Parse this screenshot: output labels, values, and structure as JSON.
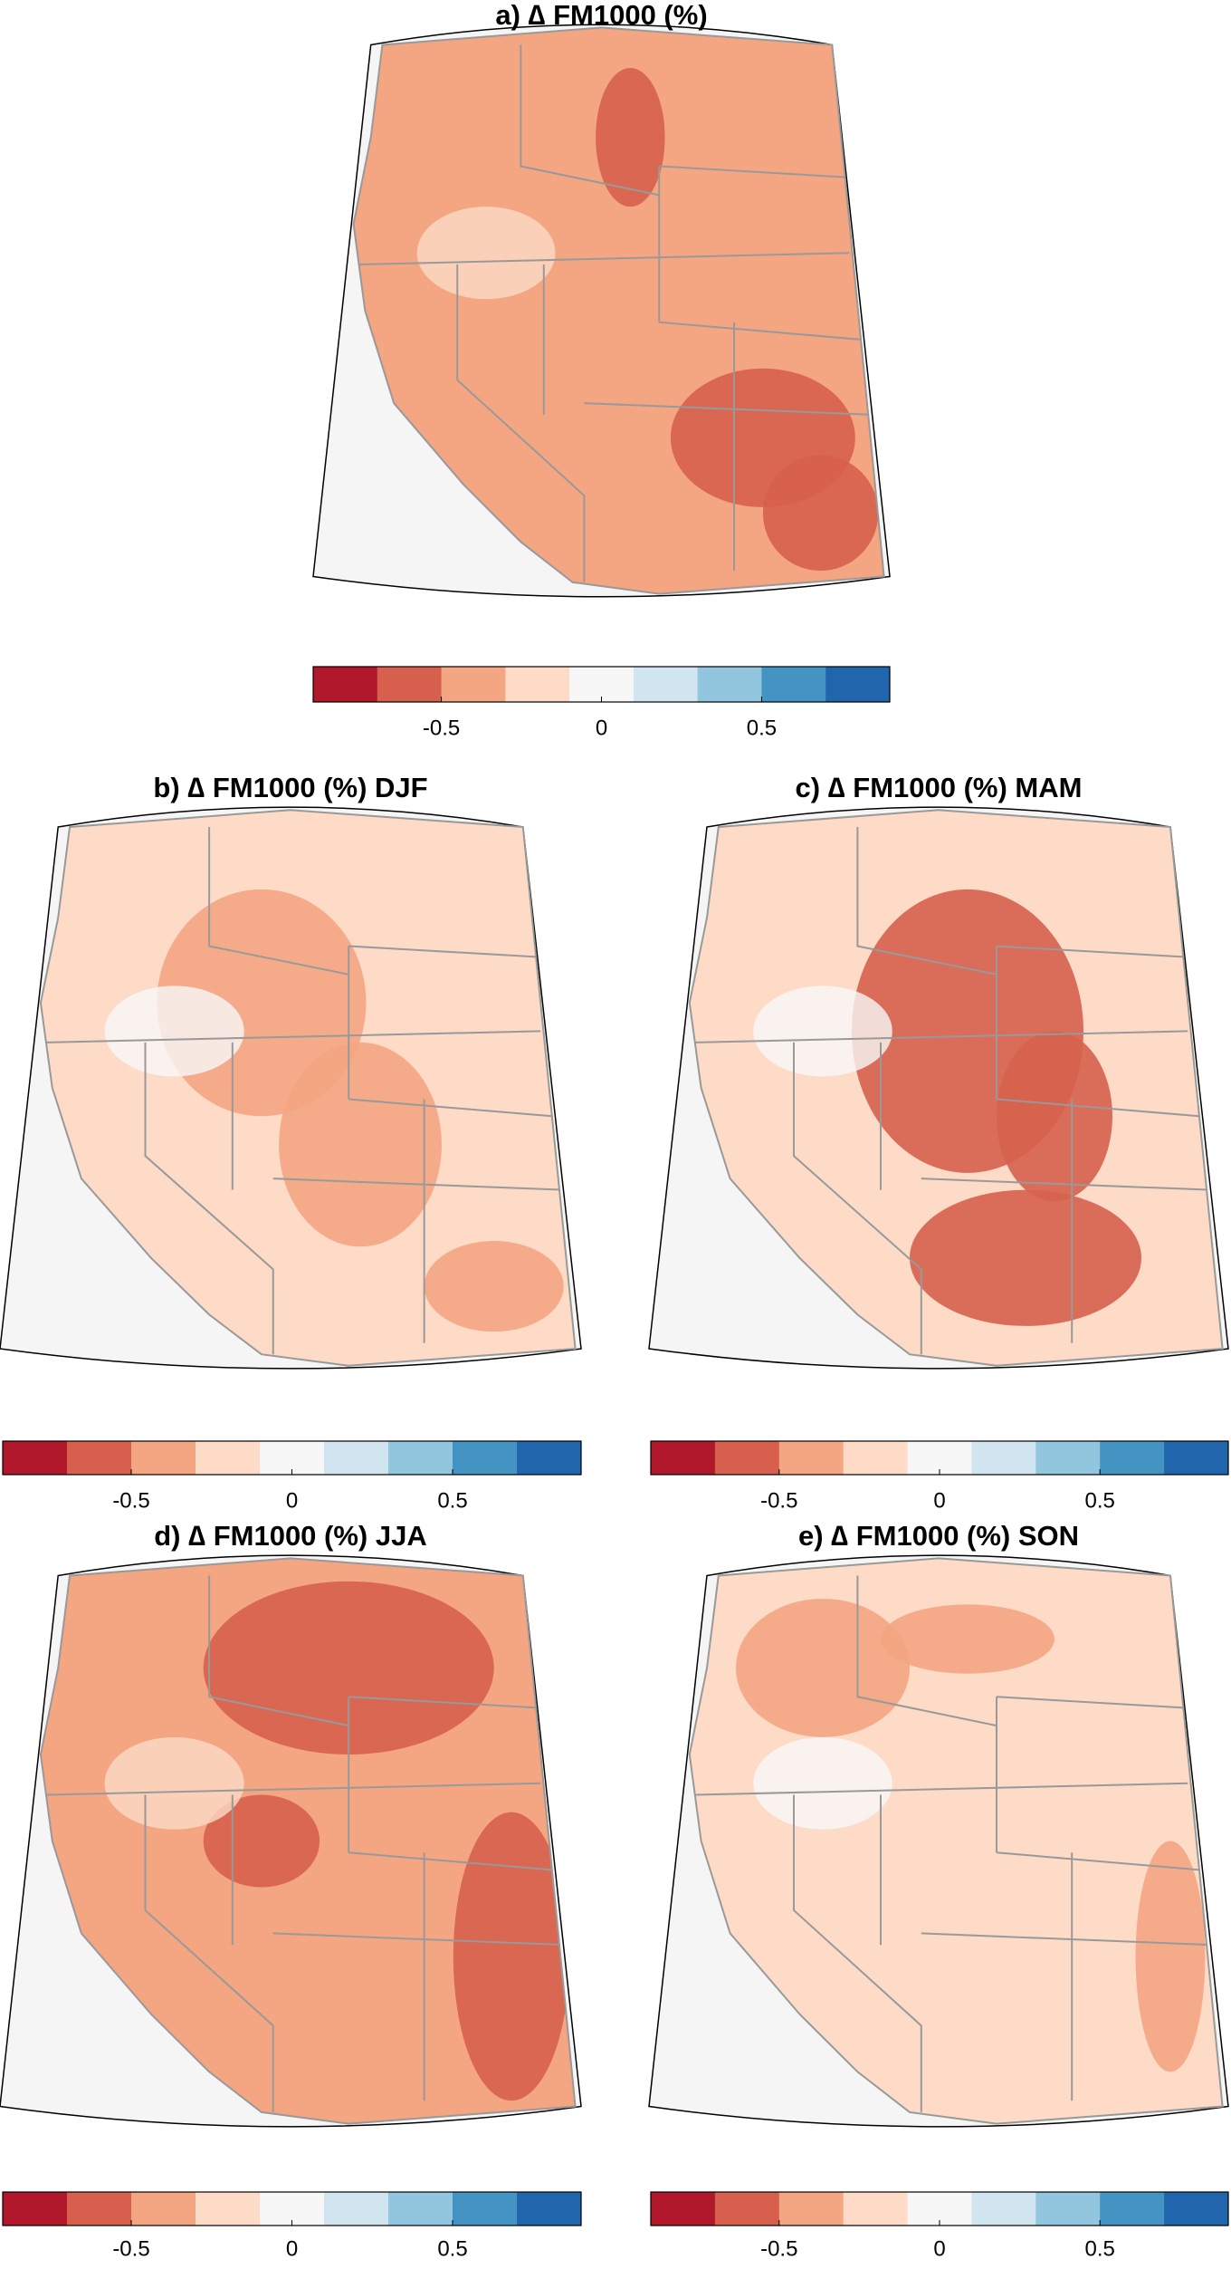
{
  "panels": [
    {
      "title": "a) ∆ FM1000 (%)"
    },
    {
      "title": "b) ∆ FM1000 (%) DJF"
    },
    {
      "title": "c) ∆ FM1000 (%) MAM"
    },
    {
      "title": "d) ∆ FM1000 (%) JJA"
    },
    {
      "title": "e) ∆ FM1000 (%) SON"
    }
  ],
  "colormap": [
    "#b2182b",
    "#d6604d",
    "#f4a582",
    "#fddbc7",
    "#f7f7f7",
    "#d1e5f0",
    "#92c5de",
    "#4393c3",
    "#2166ac"
  ],
  "colorbars": [
    {
      "lim": [
        -0.9,
        0.9
      ],
      "ticks": [
        -0.5,
        0,
        0.5
      ]
    },
    {
      "lim": [
        -0.9,
        0.9
      ],
      "ticks": [
        -0.5,
        0,
        0.5
      ]
    },
    {
      "lim": [
        -0.9,
        0.9
      ],
      "ticks": [
        -0.5,
        0,
        0.5
      ]
    },
    {
      "lim": [
        -0.9,
        0.9
      ],
      "ticks": [
        -0.5,
        0,
        0.5
      ]
    }
  ]
}
